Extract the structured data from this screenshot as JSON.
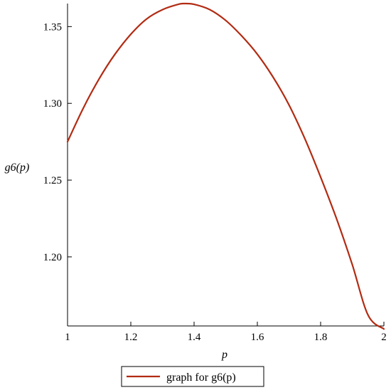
{
  "chart_data": {
    "type": "line",
    "xlabel": "p",
    "ylabel": "g6(p)",
    "xlim": [
      1,
      2
    ],
    "ylim": [
      1.155,
      1.365
    ],
    "x_ticks": [
      "1",
      "1.2",
      "1.4",
      "1.6",
      "1.8",
      "2"
    ],
    "y_ticks": [
      "1.20",
      "1.25",
      "1.30",
      "1.35"
    ],
    "grid": false,
    "legend_position": "bottom",
    "series": [
      {
        "name": "graph for g6(p)",
        "color": "#b22b12",
        "x": [
          1.0,
          1.05,
          1.1,
          1.15,
          1.2,
          1.25,
          1.3,
          1.35,
          1.37,
          1.4,
          1.45,
          1.5,
          1.55,
          1.6,
          1.65,
          1.7,
          1.75,
          1.8,
          1.85,
          1.9,
          1.95,
          2.0
        ],
        "y": [
          1.275,
          1.297,
          1.316,
          1.332,
          1.345,
          1.355,
          1.361,
          1.3645,
          1.365,
          1.3645,
          1.361,
          1.354,
          1.344,
          1.332,
          1.317,
          1.299,
          1.277,
          1.252,
          1.225,
          1.195,
          1.162,
          1.153
        ]
      }
    ]
  }
}
